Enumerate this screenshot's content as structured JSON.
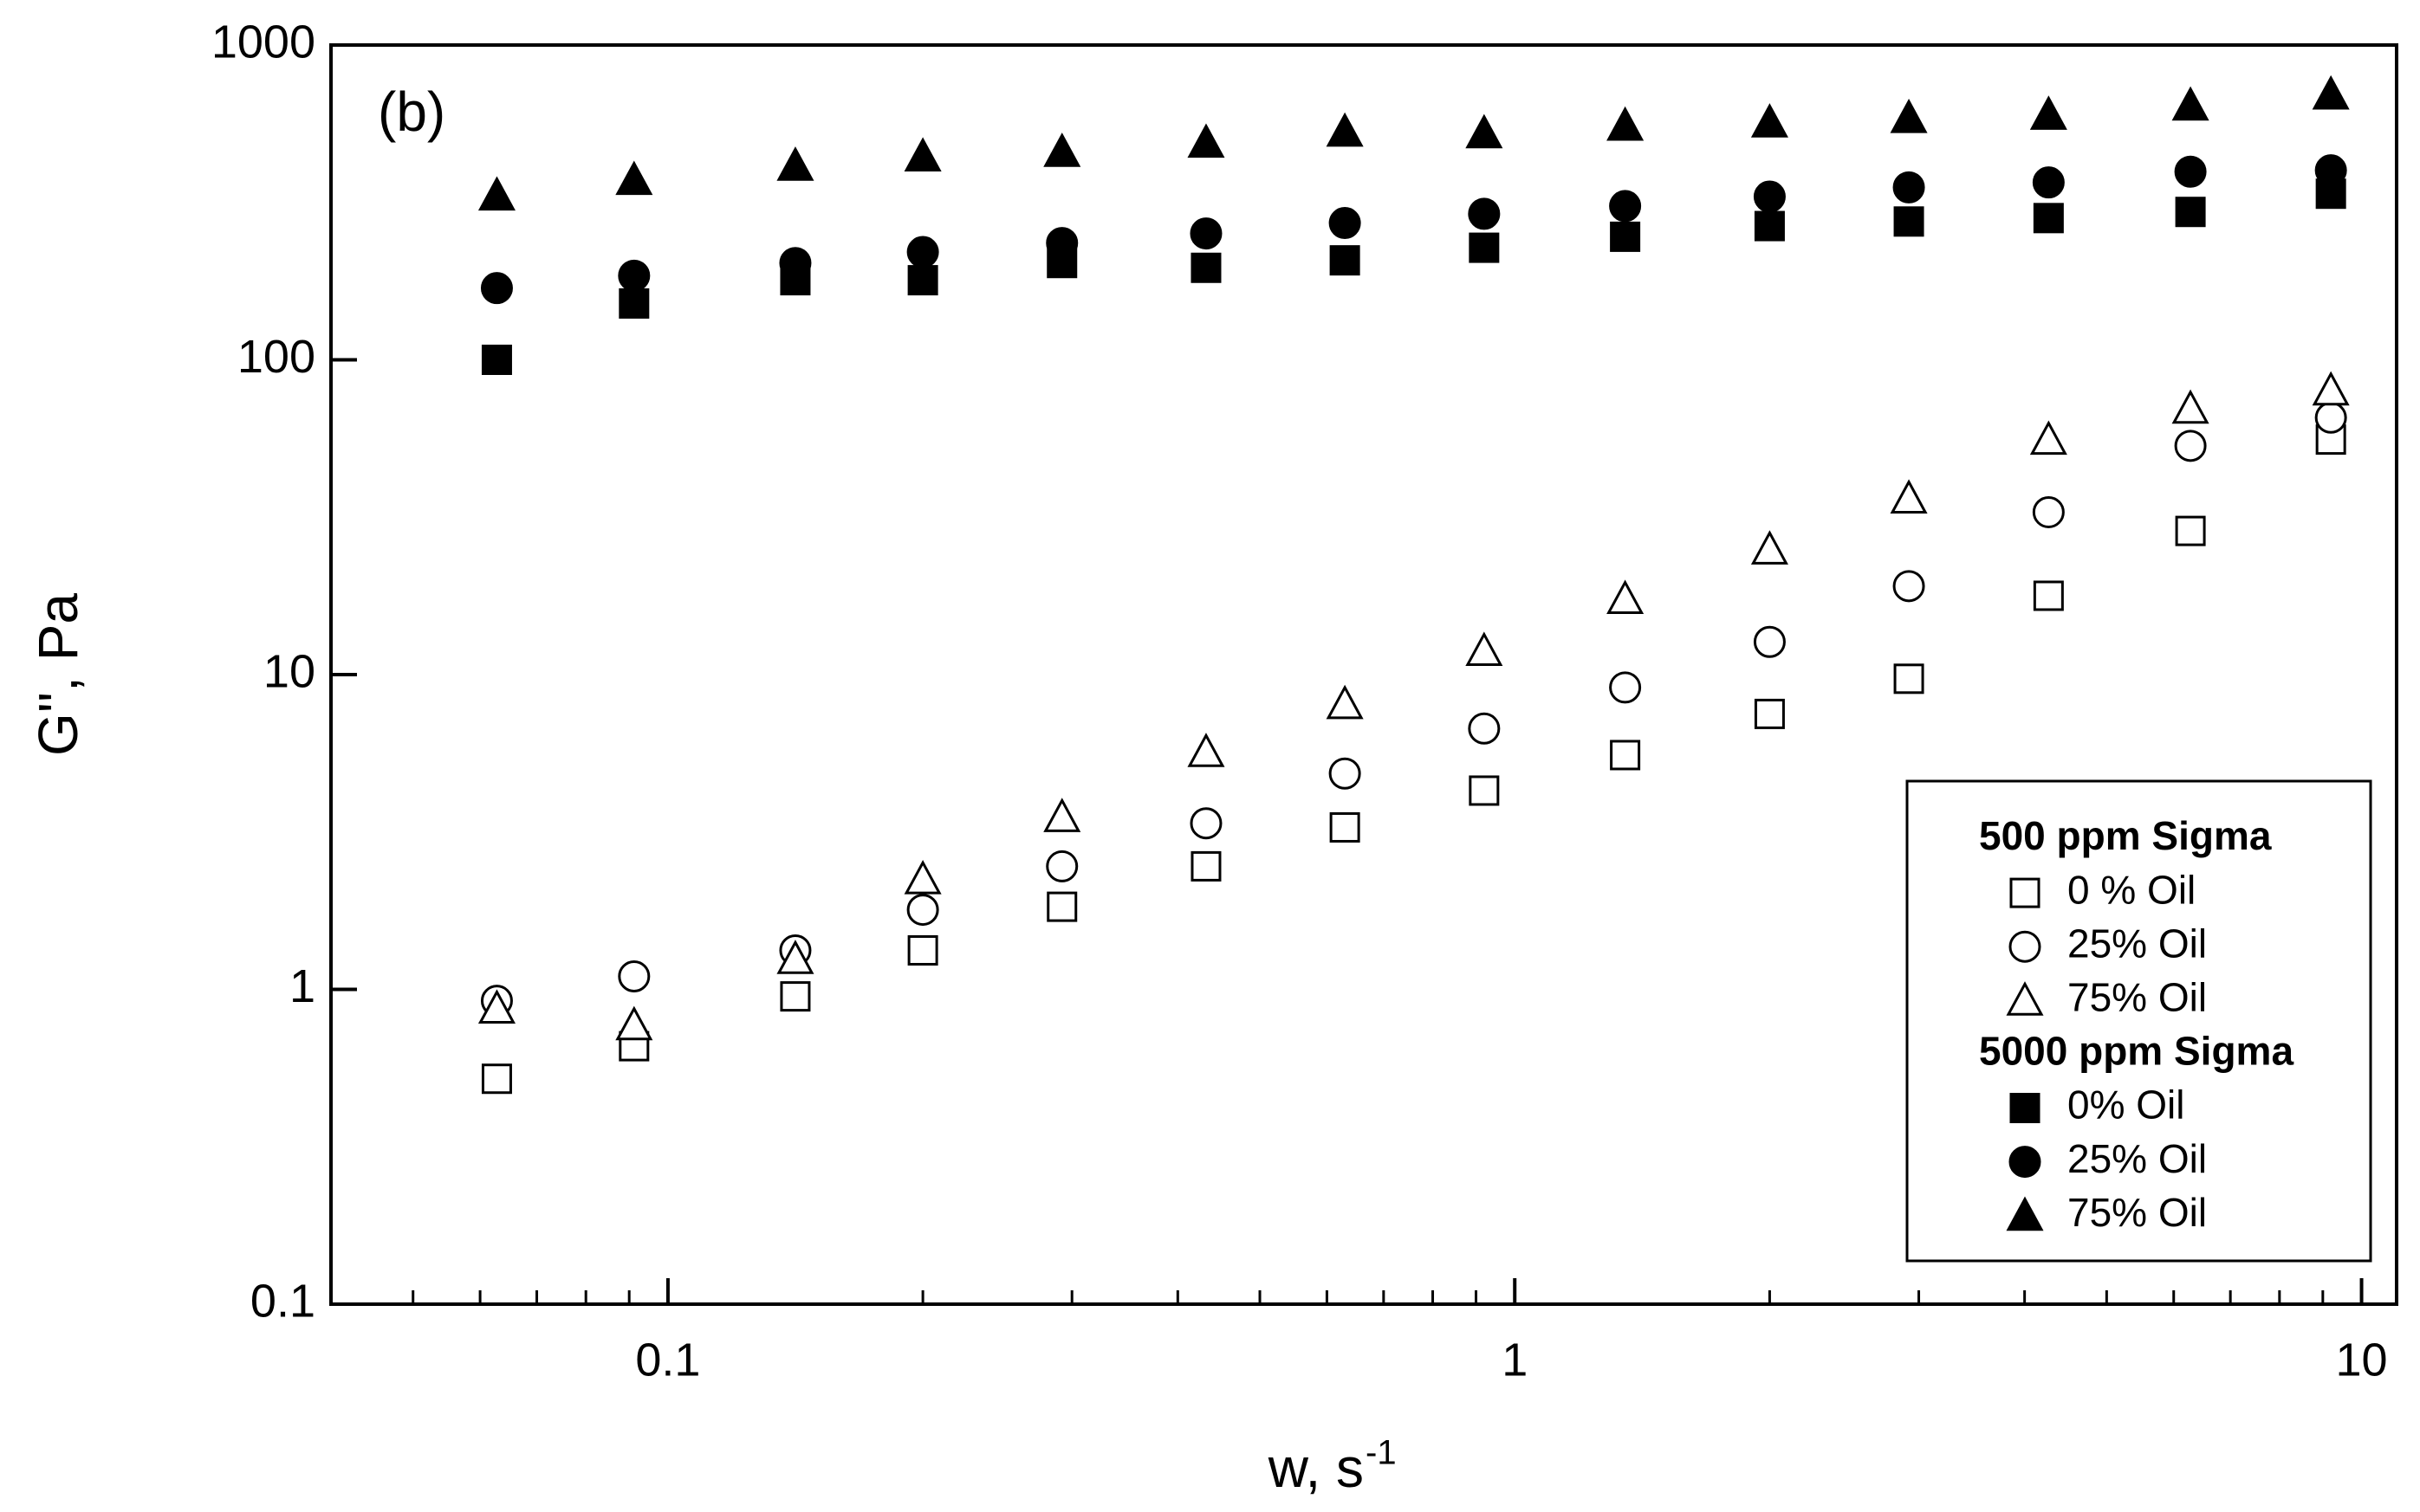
{
  "chart_data": {
    "type": "scatter",
    "annotation": "(b)",
    "xlabel": "w, s",
    "xlabel_sup": "-1",
    "ylabel": "G'', Pa",
    "xscale": "log",
    "yscale": "log",
    "xlim": [
      0.04,
      11
    ],
    "ylim": [
      0.1,
      1000
    ],
    "xticks": [
      0.1,
      1,
      10
    ],
    "xminorticks": [
      0.05,
      0.06,
      0.07,
      0.08,
      0.09,
      0.2,
      0.3,
      0.4,
      0.5,
      0.6,
      0.7,
      0.8,
      0.9,
      2,
      3,
      4,
      5,
      6,
      7,
      8,
      9
    ],
    "yticks": [
      0.1,
      1,
      10,
      100,
      1000
    ],
    "legend": "lower right",
    "x": [
      0.0628,
      0.0912,
      0.1414,
      0.2,
      0.292,
      0.432,
      0.63,
      0.92,
      1.35,
      2.0,
      2.92,
      4.27,
      6.28,
      9.2
    ],
    "series_groups": [
      {
        "name": "500 ppm Sigma",
        "series": [
          {
            "name": "0 % Oil",
            "marker": "square",
            "filled": false,
            "color": "#000000",
            "values": [
              0.52,
              0.66,
              0.95,
              1.33,
              1.83,
              2.46,
              3.27,
              4.28,
              5.55,
              7.5,
              9.7,
              17.8,
              28.6,
              55.8
            ]
          },
          {
            "name": "25% Oil",
            "marker": "circle",
            "filled": false,
            "color": "#000000",
            "values": [
              0.92,
              1.1,
              1.33,
              1.79,
              2.46,
              3.37,
              4.85,
              6.74,
              9.1,
              12.7,
              19.1,
              32.8,
              53.3,
              65.5
            ]
          },
          {
            "name": "75% Oil",
            "marker": "triangle",
            "filled": false,
            "color": "#000000",
            "values": [
              0.87,
              0.77,
              1.25,
              2.24,
              3.53,
              5.68,
              8.07,
              11.9,
              17.4,
              25,
              36.3,
              55.8,
              70,
              80
            ]
          }
        ]
      },
      {
        "name": "5000 ppm Sigma",
        "series": [
          {
            "name": "0% Oil",
            "marker": "square",
            "filled": true,
            "color": "#000000",
            "values": [
              100,
              151,
              179,
              179,
              203,
              196,
              207,
              227,
              246,
              266,
              275,
              282,
              295,
              337
            ]
          },
          {
            "name": "25% Oil",
            "marker": "circle",
            "filled": true,
            "color": "#000000",
            "values": [
              169,
              185,
              203,
              220,
              235,
              252,
              272,
              291,
              308,
              330,
              353,
              366,
              396,
              400
            ]
          },
          {
            "name": "75% Oil",
            "marker": "triangle",
            "filled": true,
            "color": "#000000",
            "values": [
              333,
              373,
              414,
              443,
              458,
              490,
              531,
              525,
              555,
              568,
              587,
              601,
              643,
              697
            ]
          }
        ]
      }
    ]
  }
}
